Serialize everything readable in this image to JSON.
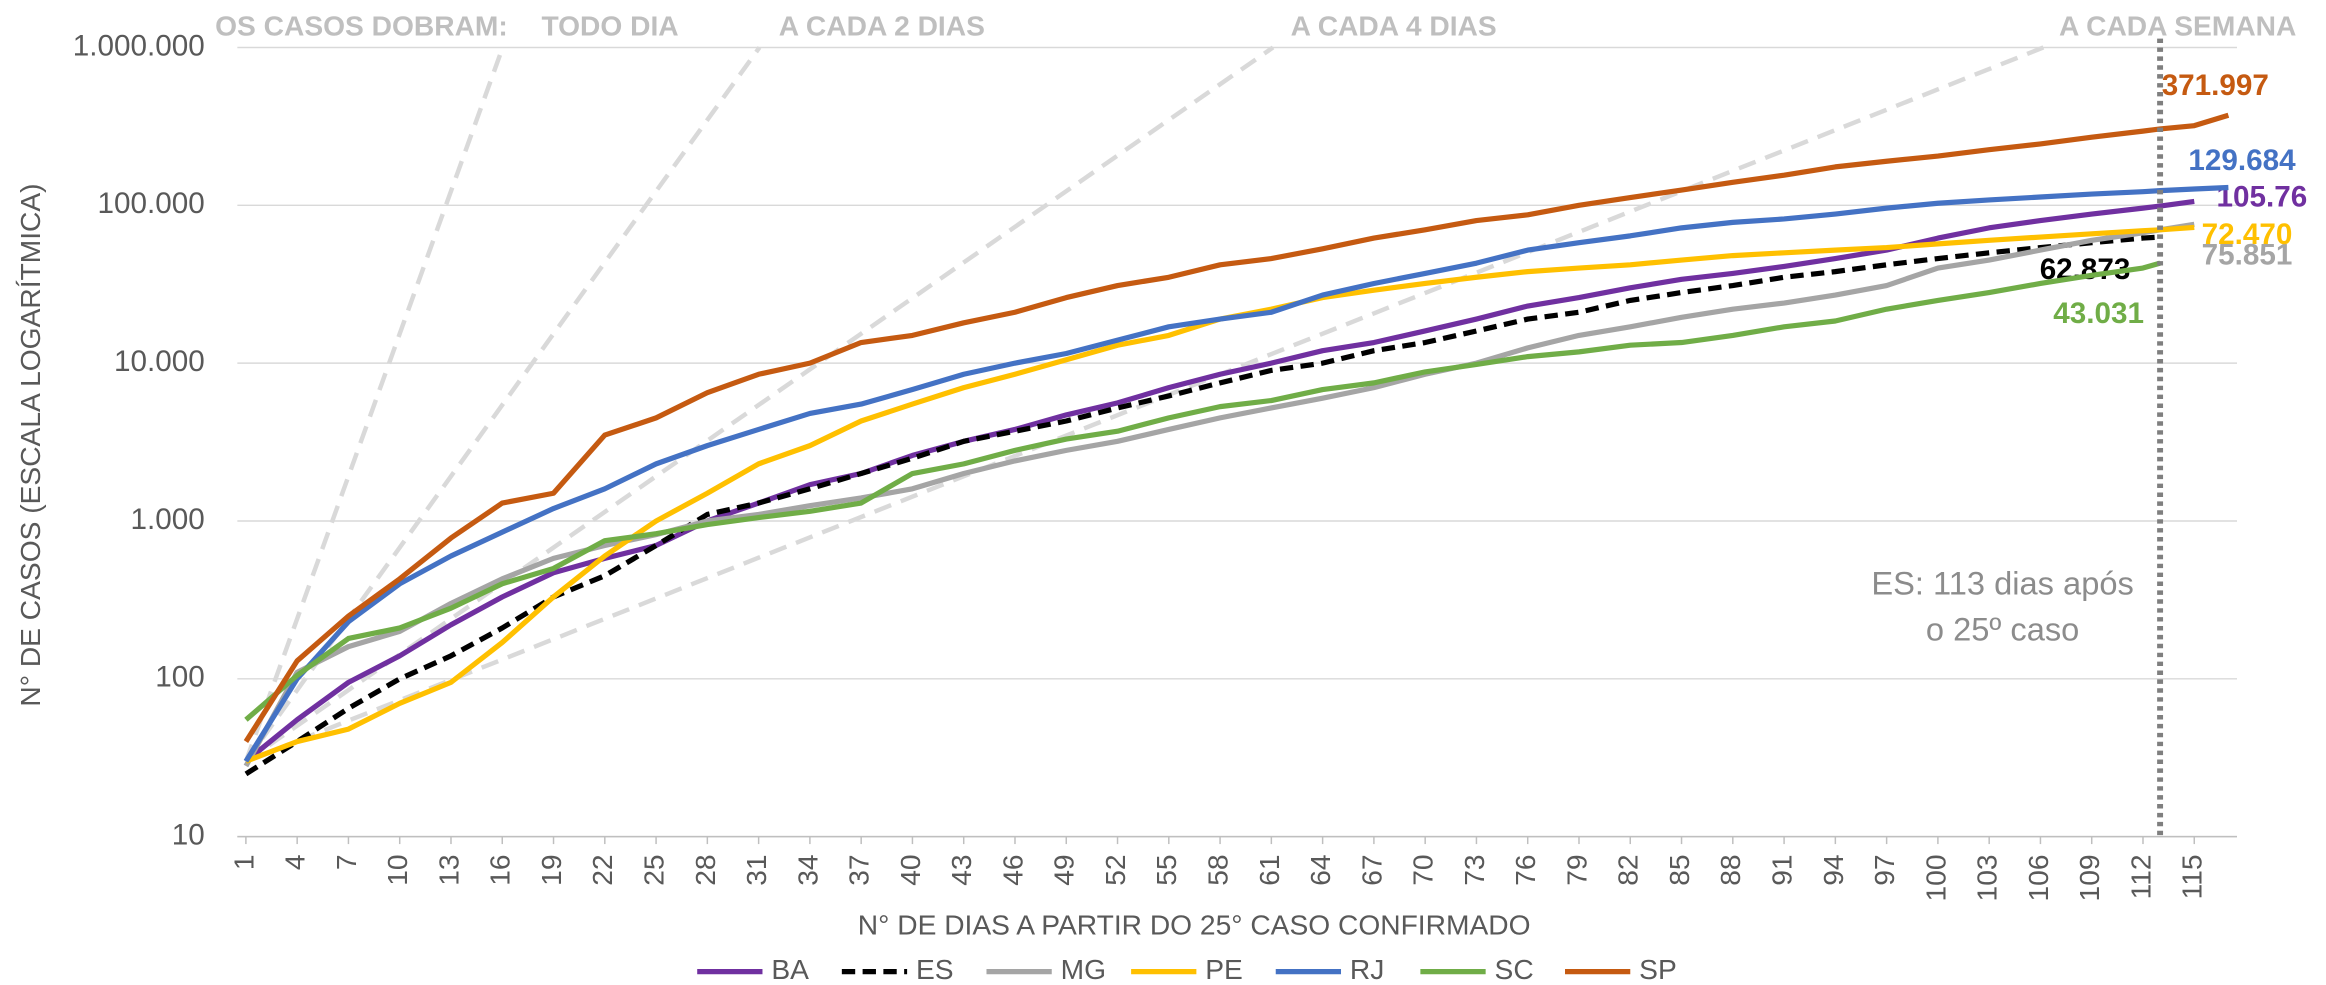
{
  "chart_data": {
    "type": "line",
    "log_scale": true,
    "grid": true,
    "y_label": "N° DE CASOS (ESCALA LOGARÍTMICA)",
    "x_label": "N° DE DIAS A PARTIR DO 25° CASO CONFIRMADO",
    "x": [
      1,
      4,
      7,
      10,
      13,
      16,
      19,
      22,
      25,
      28,
      31,
      34,
      37,
      40,
      43,
      46,
      49,
      52,
      55,
      58,
      61,
      64,
      67,
      70,
      73,
      76,
      79,
      82,
      85,
      88,
      91,
      94,
      97,
      100,
      103,
      106,
      109,
      112,
      113,
      115,
      117
    ],
    "xlim": [
      0.5,
      117.5
    ],
    "xticks": [
      1,
      4,
      7,
      10,
      13,
      16,
      19,
      22,
      25,
      28,
      31,
      34,
      37,
      40,
      43,
      46,
      49,
      52,
      55,
      58,
      61,
      64,
      67,
      70,
      73,
      76,
      79,
      82,
      85,
      88,
      91,
      94,
      97,
      100,
      103,
      106,
      109,
      112,
      115
    ],
    "ylim": [
      10,
      1000000
    ],
    "yticks": [
      10,
      100,
      {
        "value": 1000,
        "label": "1.000"
      },
      {
        "value": 10000,
        "label": "10.000"
      },
      {
        "value": 100000,
        "label": "100.000"
      },
      {
        "value": 1000000,
        "label": "1.000.000"
      }
    ],
    "series": [
      {
        "name": "BA",
        "color": "#7030a0",
        "values": [
          30,
          55,
          95,
          140,
          220,
          330,
          470,
          580,
          700,
          1000,
          1300,
          1700,
          2000,
          2600,
          3200,
          3800,
          4700,
          5600,
          7000,
          8500,
          10000,
          12000,
          13500,
          16000,
          19000,
          23000,
          26000,
          30000,
          34000,
          37000,
          41000,
          46000,
          52000,
          62000,
          72000,
          80000,
          88000,
          96000,
          99000,
          105760,
          null
        ],
        "value_labels": [
          null,
          null,
          null,
          null,
          null,
          null,
          null,
          null,
          null,
          null,
          null,
          null,
          null,
          null,
          null,
          null,
          null,
          null,
          null,
          null,
          null,
          null,
          null,
          null,
          null,
          null,
          null,
          null,
          null,
          null,
          null,
          null,
          null,
          null,
          null,
          null,
          null,
          null,
          null,
          "105.76",
          null
        ]
      },
      {
        "name": "ES",
        "color": "#000000",
        "dash": true,
        "values": [
          25,
          40,
          65,
          100,
          140,
          210,
          330,
          450,
          700,
          1100,
          1300,
          1600,
          2000,
          2500,
          3200,
          3700,
          4300,
          5200,
          6200,
          7500,
          9000,
          10000,
          12000,
          13500,
          16000,
          19000,
          21000,
          25000,
          28000,
          31000,
          35000,
          38000,
          42000,
          46000,
          50000,
          54000,
          58000,
          62000,
          62873,
          null,
          null
        ],
        "value_labels": [
          null,
          null,
          null,
          null,
          null,
          null,
          null,
          null,
          null,
          null,
          null,
          null,
          null,
          null,
          null,
          null,
          null,
          null,
          null,
          null,
          null,
          null,
          null,
          null,
          null,
          null,
          null,
          null,
          null,
          null,
          null,
          null,
          null,
          null,
          null,
          null,
          null,
          null,
          "62.873",
          null,
          null
        ]
      },
      {
        "name": "MG",
        "color": "#a5a5a5",
        "values": [
          28,
          110,
          160,
          200,
          300,
          430,
          580,
          700,
          820,
          1000,
          1100,
          1250,
          1400,
          1600,
          2000,
          2400,
          2800,
          3200,
          3800,
          4500,
          5200,
          6000,
          7000,
          8500,
          10000,
          12500,
          15000,
          17000,
          19500,
          22000,
          24000,
          27000,
          31000,
          40000,
          45000,
          52000,
          60000,
          67000,
          70000,
          75851,
          null
        ],
        "value_labels": [
          null,
          null,
          null,
          null,
          null,
          null,
          null,
          null,
          null,
          null,
          null,
          null,
          null,
          null,
          null,
          null,
          null,
          null,
          null,
          null,
          null,
          null,
          null,
          null,
          null,
          null,
          null,
          null,
          null,
          null,
          null,
          null,
          null,
          null,
          null,
          null,
          null,
          null,
          null,
          "75.851",
          null
        ]
      },
      {
        "name": "PE",
        "color": "#ffc000",
        "values": [
          30,
          40,
          48,
          70,
          95,
          170,
          330,
          600,
          1000,
          1500,
          2300,
          3000,
          4300,
          5500,
          7000,
          8500,
          10500,
          13000,
          15000,
          19000,
          22000,
          26000,
          29000,
          32000,
          35000,
          38000,
          40000,
          42000,
          45000,
          48000,
          50000,
          52000,
          54000,
          57000,
          60000,
          63000,
          66000,
          69000,
          70000,
          72470,
          null
        ],
        "value_labels": [
          null,
          null,
          null,
          null,
          null,
          null,
          null,
          null,
          null,
          null,
          null,
          null,
          null,
          null,
          null,
          null,
          null,
          null,
          null,
          null,
          null,
          null,
          null,
          null,
          null,
          null,
          null,
          null,
          null,
          null,
          null,
          null,
          null,
          null,
          null,
          null,
          null,
          null,
          null,
          "72.470",
          null
        ]
      },
      {
        "name": "RJ",
        "color": "#4472c4",
        "values": [
          30,
          100,
          230,
          400,
          600,
          850,
          1200,
          1600,
          2300,
          3000,
          3800,
          4800,
          5500,
          6800,
          8500,
          10000,
          11500,
          14000,
          17000,
          19000,
          21000,
          27000,
          32000,
          37000,
          43000,
          52000,
          58000,
          64000,
          72000,
          78000,
          82000,
          88000,
          96000,
          103000,
          108000,
          113000,
          118000,
          122000,
          124000,
          127000,
          129684
        ],
        "value_labels": [
          null,
          null,
          null,
          null,
          null,
          null,
          null,
          null,
          null,
          null,
          null,
          null,
          null,
          null,
          null,
          null,
          null,
          null,
          null,
          null,
          null,
          null,
          null,
          null,
          null,
          null,
          null,
          null,
          null,
          null,
          null,
          null,
          null,
          null,
          null,
          null,
          null,
          null,
          null,
          null,
          "129.684"
        ]
      },
      {
        "name": "SC",
        "color": "#70ad47",
        "values": [
          55,
          105,
          180,
          210,
          280,
          400,
          500,
          750,
          830,
          950,
          1050,
          1150,
          1300,
          2000,
          2300,
          2800,
          3300,
          3700,
          4500,
          5300,
          5800,
          6800,
          7500,
          8800,
          9800,
          11000,
          11800,
          13000,
          13500,
          15000,
          17000,
          18500,
          22000,
          25000,
          28000,
          32000,
          36000,
          40000,
          43031,
          null,
          null
        ],
        "value_labels": [
          null,
          null,
          null,
          null,
          null,
          null,
          null,
          null,
          null,
          null,
          null,
          null,
          null,
          null,
          null,
          null,
          null,
          null,
          null,
          null,
          null,
          null,
          null,
          null,
          null,
          null,
          null,
          null,
          null,
          null,
          null,
          null,
          null,
          null,
          null,
          null,
          null,
          null,
          "43.031",
          null,
          null
        ]
      },
      {
        "name": "SP",
        "color": "#c55a11",
        "values": [
          40,
          130,
          250,
          430,
          780,
          1300,
          1500,
          3500,
          4500,
          6500,
          8500,
          10000,
          13500,
          15000,
          18000,
          21000,
          26000,
          31000,
          35000,
          42000,
          46000,
          53000,
          62000,
          70000,
          80000,
          87000,
          100000,
          112000,
          125000,
          140000,
          155000,
          175000,
          190000,
          205000,
          225000,
          245000,
          270000,
          295000,
          305000,
          320000,
          371997
        ],
        "value_labels": [
          null,
          null,
          null,
          null,
          null,
          null,
          null,
          null,
          null,
          null,
          null,
          null,
          null,
          null,
          null,
          null,
          null,
          null,
          null,
          null,
          null,
          null,
          null,
          null,
          null,
          null,
          null,
          null,
          null,
          null,
          null,
          null,
          null,
          null,
          null,
          null,
          null,
          null,
          null,
          null,
          "371.997"
        ]
      }
    ],
    "reference_title": "OS CASOS DOBRAM:",
    "reference_lines": [
      {
        "label": "TODO DIA",
        "doubling_days": 1,
        "start": 30
      },
      {
        "label": "A CADA 2 DIAS",
        "doubling_days": 2,
        "start": 30
      },
      {
        "label": "A CADA 4 DIAS",
        "doubling_days": 4,
        "start": 30
      },
      {
        "label": "A CADA SEMANA",
        "doubling_days": 7,
        "start": 30
      }
    ],
    "marker_x": 113,
    "annotation": [
      "ES: 113 dias após",
      "o 25º caso"
    ]
  }
}
